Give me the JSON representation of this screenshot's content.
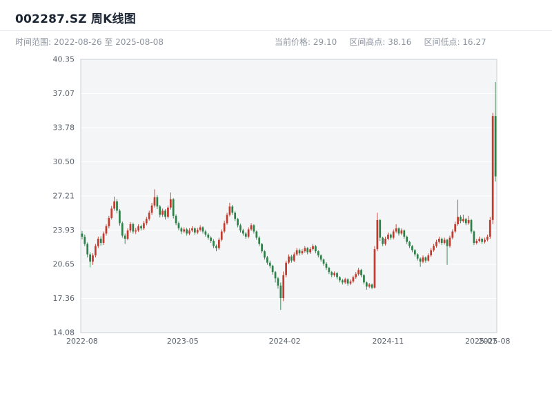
{
  "header": {
    "title": "002287.SZ 周K线图",
    "time_range_label": "时间范围: 2022-08-26 至 2025-08-08",
    "current_price_label": "当前价格: 29.10",
    "range_high_label": "区间高点: 38.16",
    "range_low_label": "区间低点: 16.27"
  },
  "chart_data": {
    "type": "candlestick",
    "title": "002287.SZ 周K线图",
    "symbol": "002287.SZ",
    "interval": "weekly",
    "start_date": "2022-08-26",
    "end_date": "2025-08-08",
    "current_price": 29.1,
    "range_high": 38.16,
    "range_low": 16.27,
    "ylim": [
      14.08,
      40.35
    ],
    "y_ticks": [
      "40.35",
      "37.07",
      "33.78",
      "30.50",
      "27.21",
      "23.93",
      "20.65",
      "17.36",
      "14.08"
    ],
    "x_ticks": [
      {
        "label": "2022-08",
        "pos": 0
      },
      {
        "label": "2023-05",
        "pos": 37.5
      },
      {
        "label": "2024-02",
        "pos": 75.5
      },
      {
        "label": "2024-11",
        "pos": 114
      },
      {
        "label": "2025-07",
        "pos": 148.6
      },
      {
        "label": "2025-08",
        "pos": 153.6
      }
    ],
    "colors": {
      "up": "#c23b2e",
      "down": "#2e8049"
    },
    "plot_bg": "#f4f5f6",
    "grid_color": "#ffffff",
    "border_color": "#c9ced4",
    "grid": true,
    "legend": false,
    "candles": [
      [
        23.6,
        23.85,
        23.05,
        23.3
      ],
      [
        23.3,
        23.5,
        22.4,
        22.6
      ],
      [
        22.6,
        22.75,
        21.3,
        21.6
      ],
      [
        21.6,
        21.8,
        20.35,
        20.9
      ],
      [
        20.9,
        21.7,
        20.6,
        21.5
      ],
      [
        21.5,
        22.6,
        21.3,
        22.4
      ],
      [
        22.4,
        23.3,
        22.2,
        23.1
      ],
      [
        23.1,
        23.35,
        22.45,
        22.7
      ],
      [
        22.7,
        23.8,
        22.5,
        23.6
      ],
      [
        23.6,
        24.5,
        23.4,
        24.3
      ],
      [
        24.3,
        25.3,
        24.1,
        25.1
      ],
      [
        25.1,
        26.25,
        24.95,
        26.0
      ],
      [
        26.0,
        27.15,
        25.8,
        26.7
      ],
      [
        26.7,
        26.9,
        25.55,
        25.8
      ],
      [
        25.8,
        25.95,
        24.35,
        24.6
      ],
      [
        24.6,
        24.75,
        23.2,
        23.4
      ],
      [
        23.4,
        23.6,
        22.6,
        23.1
      ],
      [
        23.1,
        24.1,
        22.95,
        23.9
      ],
      [
        23.9,
        24.7,
        23.7,
        24.5
      ],
      [
        24.5,
        24.65,
        23.6,
        23.8
      ],
      [
        23.8,
        24.15,
        23.55,
        23.9
      ],
      [
        23.9,
        24.5,
        23.75,
        24.3
      ],
      [
        24.3,
        24.45,
        23.9,
        24.1
      ],
      [
        24.1,
        24.8,
        23.95,
        24.6
      ],
      [
        24.6,
        25.2,
        24.4,
        25.0
      ],
      [
        25.0,
        25.8,
        24.85,
        25.6
      ],
      [
        25.6,
        26.55,
        25.4,
        26.3
      ],
      [
        26.3,
        27.85,
        26.1,
        27.1
      ],
      [
        27.1,
        27.3,
        25.95,
        26.2
      ],
      [
        26.2,
        26.35,
        25.15,
        25.4
      ],
      [
        25.4,
        26.0,
        25.2,
        25.8
      ],
      [
        25.8,
        25.95,
        24.95,
        25.2
      ],
      [
        25.2,
        26.3,
        25.05,
        26.1
      ],
      [
        26.1,
        27.55,
        25.9,
        26.9
      ],
      [
        26.9,
        27.0,
        25.05,
        25.3
      ],
      [
        25.3,
        25.45,
        24.4,
        24.6
      ],
      [
        24.6,
        24.75,
        23.9,
        24.1
      ],
      [
        24.1,
        24.25,
        23.55,
        23.8
      ],
      [
        23.8,
        24.2,
        23.65,
        24.0
      ],
      [
        24.0,
        24.15,
        23.4,
        23.6
      ],
      [
        23.6,
        24.1,
        23.45,
        23.9
      ],
      [
        23.9,
        24.3,
        23.75,
        24.1
      ],
      [
        24.1,
        24.2,
        23.5,
        23.7
      ],
      [
        23.7,
        24.15,
        23.55,
        23.95
      ],
      [
        23.95,
        24.4,
        23.8,
        24.2
      ],
      [
        24.2,
        24.3,
        23.6,
        23.8
      ],
      [
        23.8,
        23.95,
        23.3,
        23.5
      ],
      [
        23.5,
        23.65,
        23.0,
        23.2
      ],
      [
        23.2,
        23.35,
        22.7,
        22.9
      ],
      [
        22.9,
        23.05,
        22.2,
        22.4
      ],
      [
        22.4,
        22.55,
        21.9,
        22.2
      ],
      [
        22.2,
        23.2,
        22.05,
        23.0
      ],
      [
        23.0,
        24.0,
        22.85,
        23.8
      ],
      [
        23.8,
        24.85,
        23.65,
        24.6
      ],
      [
        24.6,
        25.6,
        24.45,
        25.4
      ],
      [
        25.4,
        26.55,
        25.25,
        26.2
      ],
      [
        26.2,
        26.35,
        25.4,
        25.6
      ],
      [
        25.6,
        25.75,
        24.8,
        25.0
      ],
      [
        25.0,
        25.1,
        24.2,
        24.4
      ],
      [
        24.4,
        24.55,
        23.7,
        23.9
      ],
      [
        23.9,
        24.05,
        23.4,
        23.6
      ],
      [
        23.6,
        23.75,
        23.1,
        23.3
      ],
      [
        23.3,
        24.2,
        23.15,
        24.0
      ],
      [
        24.0,
        24.6,
        23.85,
        24.4
      ],
      [
        24.4,
        24.5,
        23.6,
        23.8
      ],
      [
        23.8,
        23.9,
        23.0,
        23.2
      ],
      [
        23.2,
        23.35,
        22.4,
        22.6
      ],
      [
        22.6,
        22.7,
        21.7,
        21.9
      ],
      [
        21.9,
        22.0,
        21.1,
        21.3
      ],
      [
        21.3,
        21.45,
        20.6,
        20.8
      ],
      [
        20.8,
        21.0,
        20.25,
        20.5
      ],
      [
        20.5,
        20.6,
        19.65,
        19.9
      ],
      [
        19.9,
        20.0,
        18.9,
        19.3
      ],
      [
        19.3,
        19.45,
        18.3,
        18.6
      ],
      [
        18.6,
        18.9,
        16.27,
        17.4
      ],
      [
        17.4,
        19.95,
        17.1,
        19.6
      ],
      [
        19.6,
        21.0,
        19.4,
        20.8
      ],
      [
        20.8,
        21.6,
        20.65,
        21.4
      ],
      [
        21.4,
        21.55,
        20.8,
        21.0
      ],
      [
        21.0,
        21.8,
        20.85,
        21.6
      ],
      [
        21.6,
        22.2,
        21.45,
        22.0
      ],
      [
        22.0,
        22.15,
        21.5,
        21.7
      ],
      [
        21.7,
        22.1,
        21.55,
        21.9
      ],
      [
        21.9,
        22.4,
        21.75,
        22.2
      ],
      [
        22.2,
        22.3,
        21.6,
        21.8
      ],
      [
        21.8,
        22.3,
        21.65,
        22.1
      ],
      [
        22.1,
        22.6,
        21.95,
        22.4
      ],
      [
        22.4,
        22.5,
        21.7,
        21.9
      ],
      [
        21.9,
        22.0,
        21.3,
        21.5
      ],
      [
        21.5,
        21.6,
        20.9,
        21.1
      ],
      [
        21.1,
        21.2,
        20.5,
        20.7
      ],
      [
        20.7,
        20.85,
        20.1,
        20.3
      ],
      [
        20.3,
        20.4,
        19.7,
        19.9
      ],
      [
        19.9,
        20.0,
        19.4,
        19.6
      ],
      [
        19.6,
        19.95,
        19.45,
        19.8
      ],
      [
        19.8,
        19.9,
        19.2,
        19.4
      ],
      [
        19.4,
        19.5,
        18.9,
        19.1
      ],
      [
        19.1,
        19.25,
        18.7,
        18.9
      ],
      [
        18.9,
        19.35,
        18.75,
        19.2
      ],
      [
        19.2,
        19.3,
        18.6,
        18.8
      ],
      [
        18.8,
        19.2,
        18.65,
        19.0
      ],
      [
        19.0,
        19.55,
        18.85,
        19.4
      ],
      [
        19.4,
        19.9,
        19.25,
        19.7
      ],
      [
        19.7,
        20.3,
        19.55,
        20.1
      ],
      [
        20.1,
        20.2,
        19.4,
        19.6
      ],
      [
        19.6,
        19.7,
        18.7,
        18.9
      ],
      [
        18.9,
        19.0,
        18.2,
        18.5
      ],
      [
        18.5,
        18.85,
        18.35,
        18.7
      ],
      [
        18.7,
        18.8,
        18.25,
        18.4
      ],
      [
        18.4,
        22.4,
        18.3,
        22.1
      ],
      [
        22.1,
        25.6,
        21.9,
        24.9
      ],
      [
        24.9,
        25.0,
        22.9,
        23.2
      ],
      [
        23.2,
        23.3,
        22.4,
        22.6
      ],
      [
        22.6,
        23.3,
        22.45,
        23.1
      ],
      [
        23.1,
        23.7,
        22.95,
        23.5
      ],
      [
        23.5,
        23.6,
        23.0,
        23.2
      ],
      [
        23.2,
        24.0,
        23.05,
        23.8
      ],
      [
        23.8,
        24.5,
        23.65,
        24.1
      ],
      [
        24.1,
        24.2,
        23.4,
        23.6
      ],
      [
        23.6,
        24.1,
        23.45,
        23.9
      ],
      [
        23.9,
        24.0,
        23.1,
        23.3
      ],
      [
        23.3,
        23.4,
        22.6,
        22.8
      ],
      [
        22.8,
        22.9,
        22.2,
        22.4
      ],
      [
        22.4,
        22.5,
        21.8,
        22.0
      ],
      [
        22.0,
        22.1,
        21.4,
        21.6
      ],
      [
        21.6,
        21.7,
        21.0,
        21.2
      ],
      [
        21.2,
        21.3,
        20.4,
        20.9
      ],
      [
        20.9,
        21.5,
        20.75,
        21.3
      ],
      [
        21.3,
        21.4,
        20.8,
        21.0
      ],
      [
        21.0,
        21.7,
        20.9,
        21.5
      ],
      [
        21.5,
        22.2,
        21.35,
        22.0
      ],
      [
        22.0,
        22.6,
        21.85,
        22.4
      ],
      [
        22.4,
        23.0,
        22.25,
        22.8
      ],
      [
        22.8,
        23.3,
        22.65,
        23.1
      ],
      [
        23.1,
        23.2,
        22.5,
        22.7
      ],
      [
        22.7,
        23.2,
        22.55,
        23.0
      ],
      [
        23.0,
        23.1,
        20.6,
        22.4
      ],
      [
        22.4,
        23.4,
        22.25,
        23.2
      ],
      [
        23.2,
        24.0,
        23.05,
        23.8
      ],
      [
        23.8,
        24.75,
        23.65,
        24.5
      ],
      [
        24.5,
        26.85,
        24.35,
        25.2
      ],
      [
        25.2,
        25.35,
        24.6,
        24.8
      ],
      [
        24.8,
        25.4,
        24.65,
        25.0
      ],
      [
        25.0,
        25.1,
        24.4,
        24.6
      ],
      [
        24.6,
        25.3,
        24.45,
        24.9
      ],
      [
        24.9,
        25.0,
        23.6,
        23.8
      ],
      [
        23.8,
        23.9,
        22.5,
        22.7
      ],
      [
        22.7,
        23.1,
        22.55,
        22.9
      ],
      [
        22.9,
        23.3,
        22.75,
        23.1
      ],
      [
        23.1,
        23.2,
        22.6,
        22.8
      ],
      [
        22.8,
        23.2,
        22.65,
        23.0
      ],
      [
        23.0,
        23.5,
        22.85,
        23.3
      ],
      [
        23.3,
        25.2,
        23.1,
        24.9
      ],
      [
        24.9,
        35.2,
        24.5,
        34.9
      ],
      [
        34.9,
        38.16,
        28.6,
        29.1
      ]
    ]
  }
}
